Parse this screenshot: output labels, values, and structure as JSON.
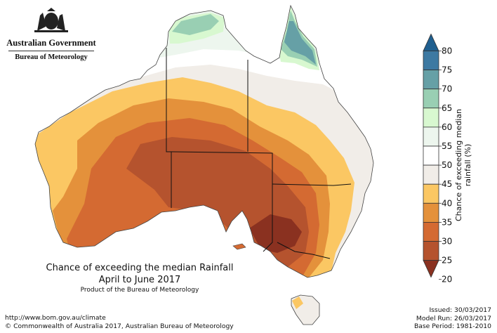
{
  "agency": {
    "government": "Australian Government",
    "bureau": "Bureau of Meteorology"
  },
  "map": {
    "title": "Chance of exceeding the median Rainfall",
    "period": "April to June 2017",
    "product": "Product of the Bureau of Meteorology"
  },
  "legend": {
    "title": "Chance of exceeding median rainfall (%)",
    "ticks": [
      "80",
      "75",
      "70",
      "65",
      "60",
      "55",
      "50",
      "45",
      "40",
      "35",
      "30",
      "25",
      "20"
    ],
    "colors": [
      "#1f5f8f",
      "#3d79a2",
      "#66a0a6",
      "#99cfb3",
      "#d8f8d0",
      "#edf6ee",
      "#ffffff",
      "#f1ede8",
      "#fbc763",
      "#e4913b",
      "#d46a32",
      "#b5532e",
      "#8a3120"
    ]
  },
  "footer": {
    "url": "http://www.bom.gov.au/climate",
    "copyright": "© Commonwealth of Australia 2017, Australian Bureau of Meteorology",
    "issued": "Issued: 30/03/2017",
    "model_run": "Model Run: 26/03/2017",
    "base_period": "Base Period: 1981-2010"
  }
}
